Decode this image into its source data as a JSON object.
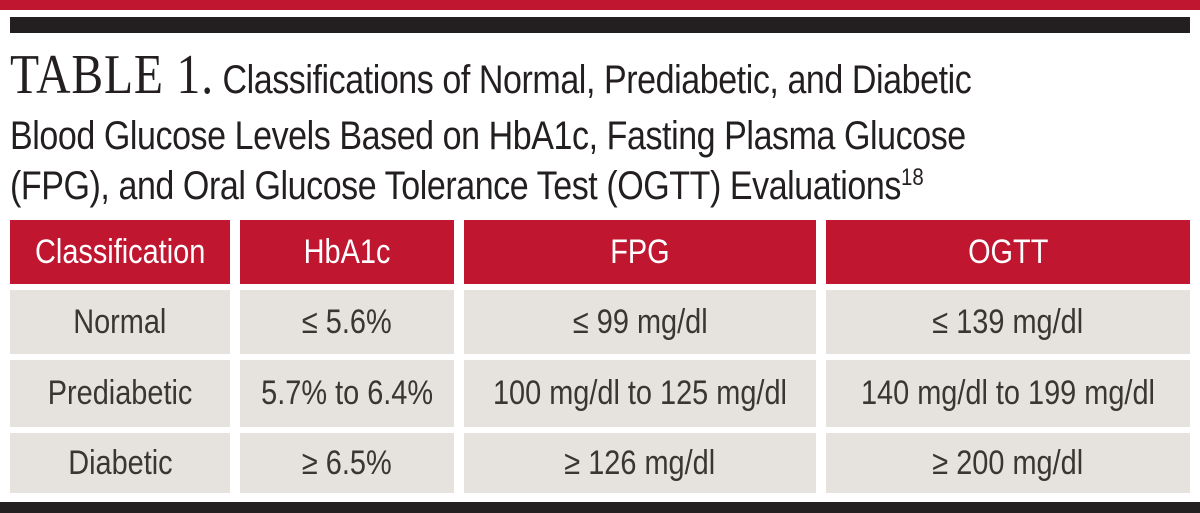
{
  "title": {
    "label": "TABLE 1.",
    "line1_rest": "Classifications of Normal, Prediabetic, and Diabetic",
    "line2": "Blood Glucose Levels Based on HbA1c, Fasting Plasma Glucose",
    "line3": "(FPG), and Oral Glucose Tolerance Test (OGTT) Evaluations",
    "footnote_ref": "18"
  },
  "chart_data": {
    "type": "table",
    "columns": [
      "Classification",
      "HbA1c",
      "FPG",
      "OGTT"
    ],
    "rows": [
      [
        "Normal",
        "≤ 5.6%",
        "≤ 99 mg/dl",
        "≤ 139 mg/dl"
      ],
      [
        "Prediabetic",
        "5.7% to 6.4%",
        "100 mg/dl to 125 mg/dl",
        "140 mg/dl to 199 mg/dl"
      ],
      [
        "Diabetic",
        "≥ 6.5%",
        "≥ 126 mg/dl",
        "≥ 200 mg/dl"
      ]
    ]
  },
  "colors": {
    "accent_red": "#c11630",
    "bar_black": "#231f20",
    "row_bg": "#e6e2dd",
    "text_dark": "#231f20",
    "cell_text": "#3a3633"
  }
}
